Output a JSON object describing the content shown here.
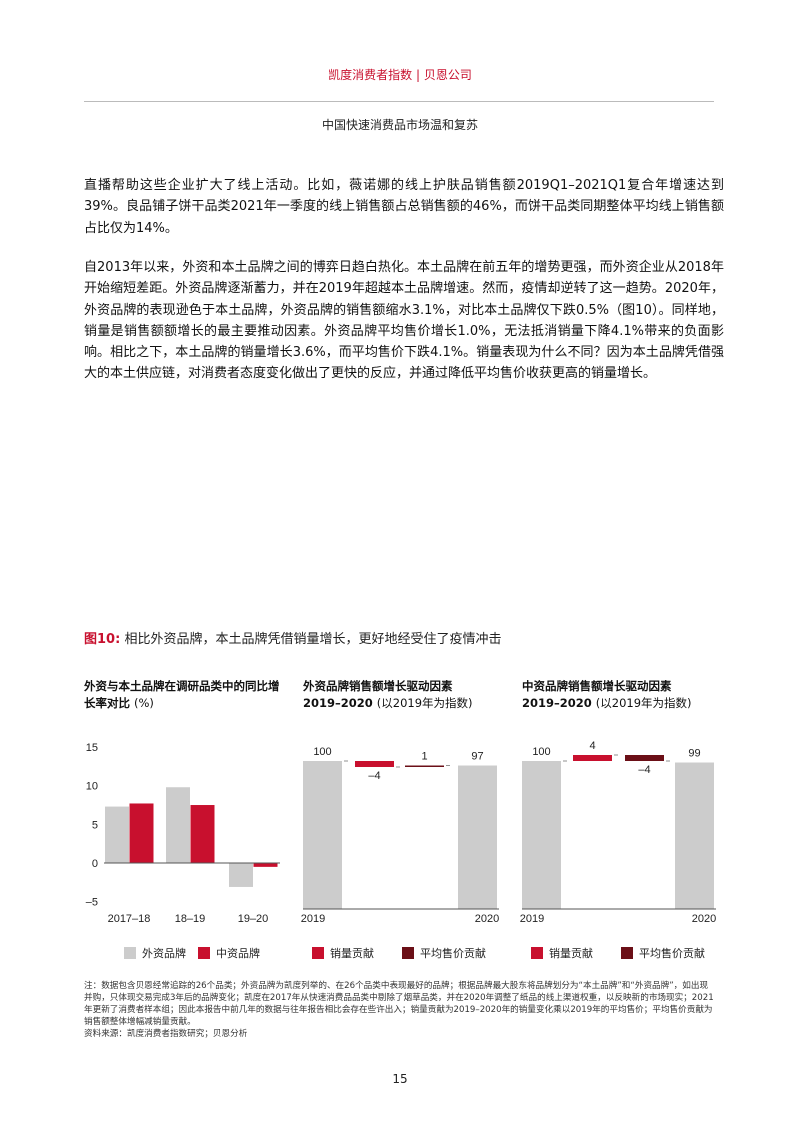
{
  "header": {
    "title": "凯度消费者指数 | 贝恩公司",
    "subtitle": "中国快速消费品市场温和复苏"
  },
  "body": {
    "paragraphs": [
      "直播帮助这些企业扩大了线上活动。比如，薇诺娜的线上护肤品销售额2019Q1–2021Q1复合年增速达到39%。良品铺子饼干品类2021年一季度的线上销售额占总销售额的46%，而饼干品类同期整体平均线上销售额占比仅为14%。",
      "自2013年以来，外资和本土品牌之间的博弈日趋白热化。本土品牌在前五年的增势更强，而外资企业从2018年开始缩短差距。外资品牌逐渐蓄力，并在2019年超越本土品牌增速。然而，疫情却逆转了这一趋势。2020年，外资品牌的表现逊色于本土品牌，外资品牌的销售额缩水3.1%，对比本土品牌仅下跌0.5%（图10）。同样地，销量是销售额额增长的最主要推动因素。外资品牌平均售价增长1.0%，无法抵消销量下降4.1%带来的负面影响。相比之下，本土品牌的销量增长3.6%，而平均售价下跌4.1%。销量表现为什么不同？因为本土品牌凭借强大的本土供应链，对消费者态度变化做出了更快的反应，并通过降低平均售价收获更高的销量增长。"
    ]
  },
  "figure": {
    "label": "图10:",
    "title": "相比外资品牌，本土品牌凭借销量增长，更好地经受住了疫情冲击"
  },
  "colors": {
    "accent": "#c8102e",
    "gray": "#cccccc",
    "dark_red": "#6b0f17"
  },
  "chart_data": [
    {
      "type": "bar",
      "title": "外资与本土品牌在调研品类中的同比增长率对比",
      "title_unit": "(%)",
      "categories": [
        "2017–18",
        "18–19",
        "19–20"
      ],
      "series": [
        {
          "name": "外资品牌",
          "color": "#cccccc",
          "values": [
            7.3,
            9.8,
            -3.1
          ]
        },
        {
          "name": "中资品牌",
          "color": "#c8102e",
          "values": [
            7.7,
            7.5,
            -0.5
          ]
        }
      ],
      "yticks": [
        "15",
        "10",
        "5",
        "0",
        "–5"
      ],
      "ylim": [
        -5,
        15
      ]
    },
    {
      "type": "waterfall",
      "title": "外资品牌销售额增长驱动因素",
      "title_line2": "2019–2020",
      "title_unit": "(以2019年为指数)",
      "steps": [
        {
          "label": "2019",
          "value": 100,
          "kind": "total",
          "text": "100"
        },
        {
          "value": -4,
          "kind": "volume",
          "text": "–4"
        },
        {
          "value": 1,
          "kind": "price",
          "text": "1"
        },
        {
          "label": "2020",
          "value": 97,
          "kind": "total",
          "text": "97"
        }
      ],
      "legend": [
        "销量贡献",
        "平均售价贡献"
      ]
    },
    {
      "type": "waterfall",
      "title": "中资品牌销售额增长驱动因素",
      "title_line2": "2019–2020",
      "title_unit": "(以2019年为指数)",
      "steps": [
        {
          "label": "2019",
          "value": 100,
          "kind": "total",
          "text": "100"
        },
        {
          "value": 4,
          "kind": "volume",
          "text": "4"
        },
        {
          "value": -4,
          "kind": "price",
          "text": "–4"
        },
        {
          "label": "2020",
          "value": 99,
          "kind": "total",
          "text": "99"
        }
      ],
      "legend": [
        "销量贡献",
        "平均售价贡献"
      ]
    }
  ],
  "notes": {
    "note": "注：数据包含贝恩经常追踪的26个品类；外资品牌为凯度列举的、在26个品类中表现最好的品牌；根据品牌最大股东将品牌划分为“本土品牌”和“外资品牌”，如出现并购，只体现交易完成3年后的品牌变化；凯度在2017年从快速消费品品类中剔除了烟草品类，并在2020年调整了纸品的线上渠道权重，以反映新的市场现实；2021年更新了消费者样本组；因此本报告中前几年的数据与往年报告相比会存在些许出入；销量贡献为2019–2020年的销量变化乘以2019年的平均售价；平均售价贡献为销售额整体增幅减销量贡献。",
    "source": "资料来源：凯度消费者指数研究；贝恩分析"
  },
  "page_number": "15"
}
